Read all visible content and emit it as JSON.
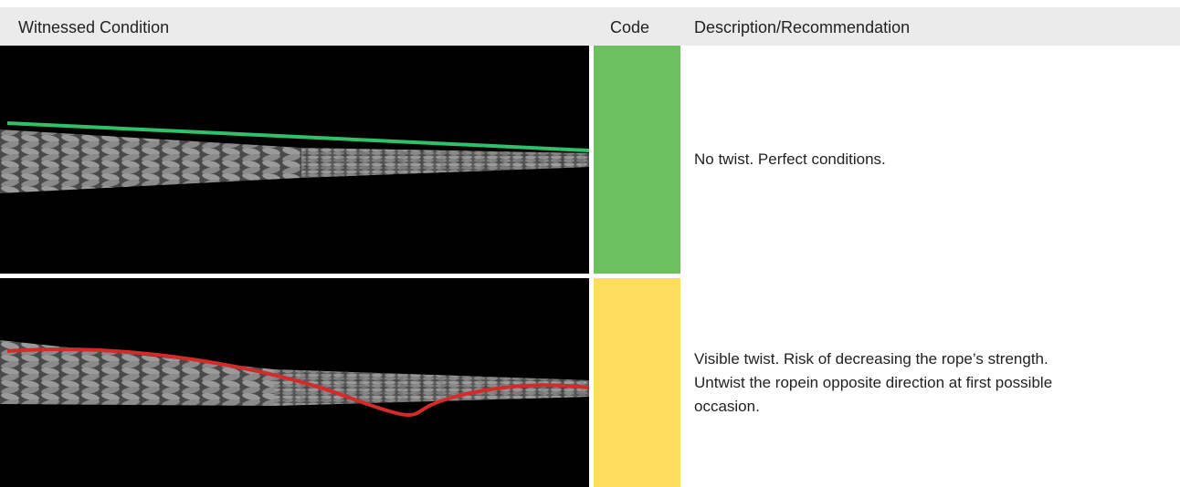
{
  "header": {
    "columns": [
      "Witnessed Condition",
      "Code",
      "Description/Recommendation"
    ]
  },
  "table": {
    "rows": [
      {
        "code_color": "#6cc15e",
        "description": "No twist. Perfect conditions."
      },
      {
        "code_color": "#fddc5e",
        "description": "Visible twist. Risk of decreasing the rope’s strength. Untwist the ropein opposite direction at first possible occasion."
      }
    ]
  }
}
